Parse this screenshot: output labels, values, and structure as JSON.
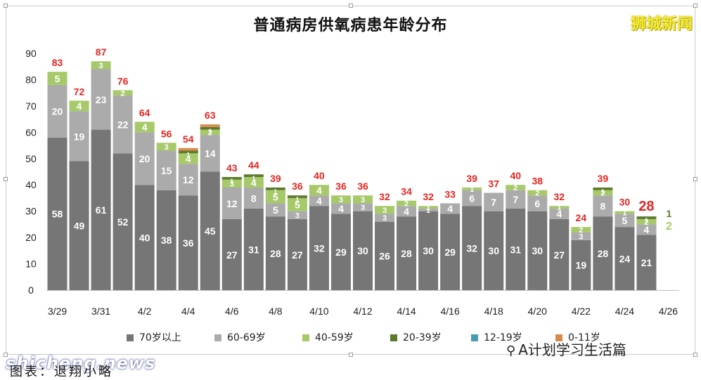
{
  "header": {
    "title": "普通病房供氧病患年龄分布",
    "brand": "狮城新闻"
  },
  "watermarks": {
    "wechat_label": "A计划学习生活篇",
    "website": "shicheng.news"
  },
  "footnote": "图表：退翔小略",
  "colors": {
    "70+": "#767676",
    "60-69": "#ababab",
    "40-59": "#a6c96a",
    "20-39": "#5c7a2c",
    "12-19": "#4a9bb0",
    "0-11": "#d88a4a",
    "total_label": "#e52421",
    "grid": "#e6e6e6",
    "axis": "#bfbfbf"
  },
  "chart_data": {
    "type": "bar",
    "stacked": true,
    "title": "普通病房供氧病患年龄分布",
    "xlabel": "",
    "ylabel": "",
    "ylim": [
      0,
      90
    ],
    "yticks": [
      0,
      10,
      20,
      30,
      40,
      50,
      60,
      70,
      80,
      90
    ],
    "grid": false,
    "legend_position": "bottom",
    "categories": [
      "3/29",
      "3/30",
      "3/31",
      "4/1",
      "4/2",
      "4/3",
      "4/4",
      "4/5",
      "4/6",
      "4/7",
      "4/8",
      "4/9",
      "4/10",
      "4/11",
      "4/12",
      "4/13",
      "4/14",
      "4/15",
      "4/16",
      "4/17",
      "4/18",
      "4/19",
      "4/20",
      "4/21",
      "4/22",
      "4/23",
      "4/24",
      "4/25",
      "4/26"
    ],
    "x_tick_labels": [
      "3/29",
      "3/31",
      "4/2",
      "4/4",
      "4/6",
      "4/8",
      "4/10",
      "4/12",
      "4/14",
      "4/16",
      "4/18",
      "4/20",
      "4/22",
      "4/24",
      "4/26"
    ],
    "series": [
      {
        "name": "70岁以上",
        "key": "70+",
        "values": [
          58,
          49,
          61,
          52,
          40,
          38,
          36,
          45,
          27,
          31,
          28,
          27,
          32,
          29,
          30,
          26,
          28,
          30,
          29,
          32,
          30,
          31,
          30,
          27,
          19,
          28,
          24,
          21,
          null
        ]
      },
      {
        "name": "60-69岁",
        "key": "60-69",
        "values": [
          20,
          19,
          23,
          22,
          20,
          15,
          12,
          14,
          12,
          8,
          5,
          3,
          4,
          4,
          3,
          3,
          4,
          1,
          4,
          6,
          7,
          7,
          6,
          4,
          3,
          8,
          5,
          4,
          null
        ]
      },
      {
        "name": "40-59岁",
        "key": "40-59",
        "values": [
          5,
          4,
          3,
          2,
          4,
          3,
          4,
          2,
          3,
          4,
          5,
          5,
          4,
          3,
          3,
          3,
          2,
          1,
          0,
          1,
          0,
          2,
          2,
          1,
          2,
          2,
          1,
          2,
          null
        ]
      },
      {
        "name": "20-39岁",
        "key": "20-39",
        "values": [
          0,
          0,
          0,
          0,
          0,
          0,
          1,
          1,
          1,
          1,
          1,
          1,
          0,
          0,
          0,
          0,
          0,
          0,
          0,
          0,
          0,
          0,
          0,
          0,
          0,
          1,
          0,
          1,
          null
        ]
      },
      {
        "name": "12-19岁",
        "key": "12-19",
        "values": [
          0,
          0,
          0,
          0,
          0,
          0,
          0,
          0,
          0,
          0,
          0,
          0,
          0,
          0,
          0,
          0,
          0,
          0,
          0,
          0,
          0,
          0,
          0,
          0,
          0,
          0,
          0,
          0,
          null
        ]
      },
      {
        "name": "0-11岁",
        "key": "0-11",
        "values": [
          0,
          0,
          0,
          0,
          0,
          0,
          1,
          1,
          0,
          0,
          0,
          0,
          0,
          0,
          0,
          0,
          0,
          0,
          0,
          0,
          0,
          0,
          0,
          0,
          0,
          0,
          0,
          0,
          null
        ]
      }
    ],
    "totals": [
      83,
      72,
      87,
      76,
      64,
      56,
      54,
      63,
      43,
      44,
      39,
      36,
      40,
      36,
      36,
      32,
      34,
      32,
      33,
      39,
      37,
      40,
      38,
      32,
      24,
      39,
      30,
      28,
      null
    ],
    "highlight_total_index": 27,
    "side_annotations": [
      {
        "series_key": "20-39",
        "value": 1
      },
      {
        "series_key": "40-59",
        "value": 2
      }
    ]
  }
}
